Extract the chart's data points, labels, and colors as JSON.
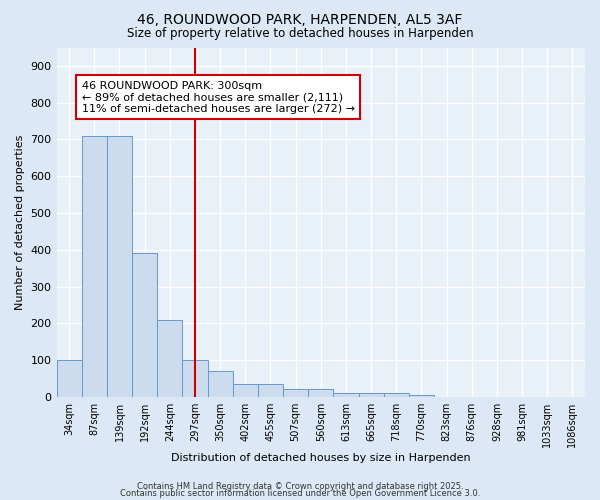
{
  "title1": "46, ROUNDWOOD PARK, HARPENDEN, AL5 3AF",
  "title2": "Size of property relative to detached houses in Harpenden",
  "xlabel": "Distribution of detached houses by size in Harpenden",
  "ylabel": "Number of detached properties",
  "bar_labels": [
    "34sqm",
    "87sqm",
    "139sqm",
    "192sqm",
    "244sqm",
    "297sqm",
    "350sqm",
    "402sqm",
    "455sqm",
    "507sqm",
    "560sqm",
    "613sqm",
    "665sqm",
    "718sqm",
    "770sqm",
    "823sqm",
    "876sqm",
    "928sqm",
    "981sqm",
    "1033sqm",
    "1086sqm"
  ],
  "bar_heights": [
    100,
    710,
    710,
    390,
    210,
    100,
    70,
    35,
    35,
    20,
    20,
    10,
    10,
    10,
    5,
    0,
    0,
    0,
    0,
    0,
    0
  ],
  "bar_color": "#ccdcee",
  "bar_edge_color": "#6699cc",
  "vline_x_index": 5,
  "vline_color": "#cc0000",
  "annotation_text": "46 ROUNDWOOD PARK: 300sqm\n← 89% of detached houses are smaller (2,111)\n11% of semi-detached houses are larger (272) →",
  "annotation_box_color": "#ffffff",
  "annotation_box_edge_color": "#cc0000",
  "bg_color": "#dce8f5",
  "plot_bg_color": "#e8f0f8",
  "footer1": "Contains HM Land Registry data © Crown copyright and database right 2025.",
  "footer2": "Contains public sector information licensed under the Open Government Licence 3.0.",
  "ylim": [
    0,
    950
  ],
  "yticks": [
    0,
    100,
    200,
    300,
    400,
    500,
    600,
    700,
    800,
    900
  ]
}
